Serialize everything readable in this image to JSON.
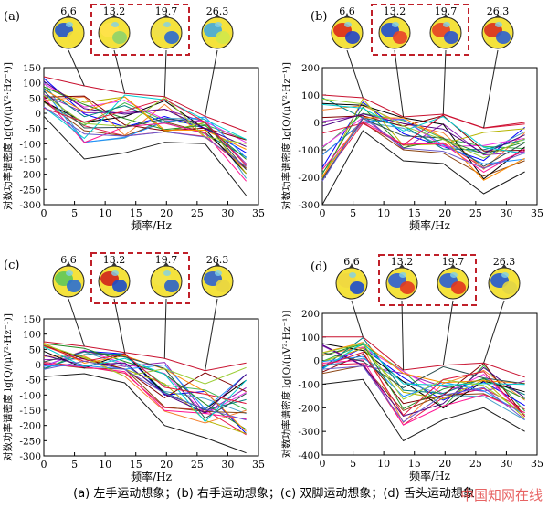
{
  "caption": "(a) 左手运动想象；(b) 右手运动想象；(c) 双脚运动想象；(d) 舌头运动想象",
  "watermark": "中国知网在线",
  "colors": {
    "highlight_box": "#c0202a",
    "axis": "#000000"
  },
  "chart_data": [
    {
      "panel": "(a)",
      "type": "line",
      "title": "左手运动想象",
      "xlabel": "频率/Hz",
      "ylabel": "对数功率谱密度 lg[Q/(μV²·Hz⁻¹)]",
      "xlim": [
        0,
        35
      ],
      "ylim": [
        -300,
        150
      ],
      "xticks": [
        "0",
        "5",
        "10",
        "15",
        "20",
        "25",
        "30",
        "35"
      ],
      "yticks": [
        "150",
        "100",
        "50",
        "0",
        "-50",
        "-100",
        "-150",
        "-200",
        "-250",
        "-300"
      ],
      "topomap_freqs": [
        "6.6",
        "13.2",
        "19.7",
        "26.3"
      ],
      "highlighted": [
        "13.2",
        "19.7"
      ],
      "x": [
        0,
        6.6,
        13.2,
        19.7,
        26.3,
        33
      ],
      "series_summary": {
        "count": 22,
        "upper_envelope": [
          120,
          90,
          65,
          55,
          -10,
          -60
        ],
        "lower_envelope": [
          -10,
          -150,
          -130,
          -95,
          -100,
          -270
        ]
      }
    },
    {
      "panel": "(b)",
      "type": "line",
      "title": "右手运动想象",
      "xlabel": "频率/Hz",
      "ylabel": "对数功率谱密度 lg[Q/(μV²·Hz⁻¹)]",
      "xlim": [
        0,
        35
      ],
      "ylim": [
        -300,
        200
      ],
      "xticks": [
        "0",
        "5",
        "10",
        "15",
        "20",
        "25",
        "30",
        "35"
      ],
      "yticks": [
        "200",
        "100",
        "0",
        "-100",
        "-200",
        "-300"
      ],
      "topomap_freqs": [
        "6.6",
        "13.2",
        "19.7",
        "26.3"
      ],
      "highlighted": [
        "13.2",
        "19.7"
      ],
      "x": [
        0,
        6.6,
        13.2,
        19.7,
        26.3,
        33
      ],
      "series_summary": {
        "count": 22,
        "upper_envelope": [
          100,
          90,
          20,
          30,
          -20,
          0
        ],
        "lower_envelope": [
          -300,
          -30,
          -140,
          -150,
          -260,
          -180
        ]
      }
    },
    {
      "panel": "(c)",
      "type": "line",
      "title": "双脚运动想象",
      "xlabel": "频率/Hz",
      "ylabel": "对数功率谱密度 lg[Q/(μV²·Hz⁻¹)]",
      "xlim": [
        0,
        35
      ],
      "ylim": [
        -300,
        150
      ],
      "xticks": [
        "0",
        "5",
        "10",
        "15",
        "20",
        "25",
        "30",
        "35"
      ],
      "yticks": [
        "150",
        "100",
        "50",
        "0",
        "-50",
        "-100",
        "-150",
        "-200",
        "-250",
        "-300"
      ],
      "topomap_freqs": [
        "6.6",
        "13.2",
        "19.7",
        "26.3"
      ],
      "highlighted": [
        "13.2",
        "19.7"
      ],
      "x": [
        0,
        6.6,
        13.2,
        19.7,
        26.3,
        33
      ],
      "series_summary": {
        "count": 22,
        "upper_envelope": [
          75,
          60,
          40,
          20,
          -20,
          5
        ],
        "lower_envelope": [
          -40,
          -30,
          -60,
          -200,
          -240,
          -290
        ]
      }
    },
    {
      "panel": "(d)",
      "type": "line",
      "title": "舌头运动想象",
      "xlabel": "频率/Hz",
      "ylabel": "对数功率谱密度 lg[Q/(μV²·Hz⁻¹)]",
      "xlim": [
        0,
        35
      ],
      "ylim": [
        -400,
        200
      ],
      "xticks": [
        "0",
        "5",
        "10",
        "15",
        "20",
        "25",
        "30",
        "35"
      ],
      "yticks": [
        "200",
        "100",
        "0",
        "-100",
        "-200",
        "-300",
        "-400"
      ],
      "topomap_freqs": [
        "6.6",
        "13.2",
        "19.7",
        "26.3"
      ],
      "highlighted": [
        "13.2",
        "19.7"
      ],
      "x": [
        0,
        6.6,
        13.2,
        19.7,
        26.3,
        33
      ],
      "series_summary": {
        "count": 22,
        "upper_envelope": [
          100,
          100,
          -40,
          -20,
          -10,
          -70
        ],
        "lower_envelope": [
          -100,
          -80,
          -340,
          -250,
          -200,
          -300
        ]
      }
    }
  ]
}
